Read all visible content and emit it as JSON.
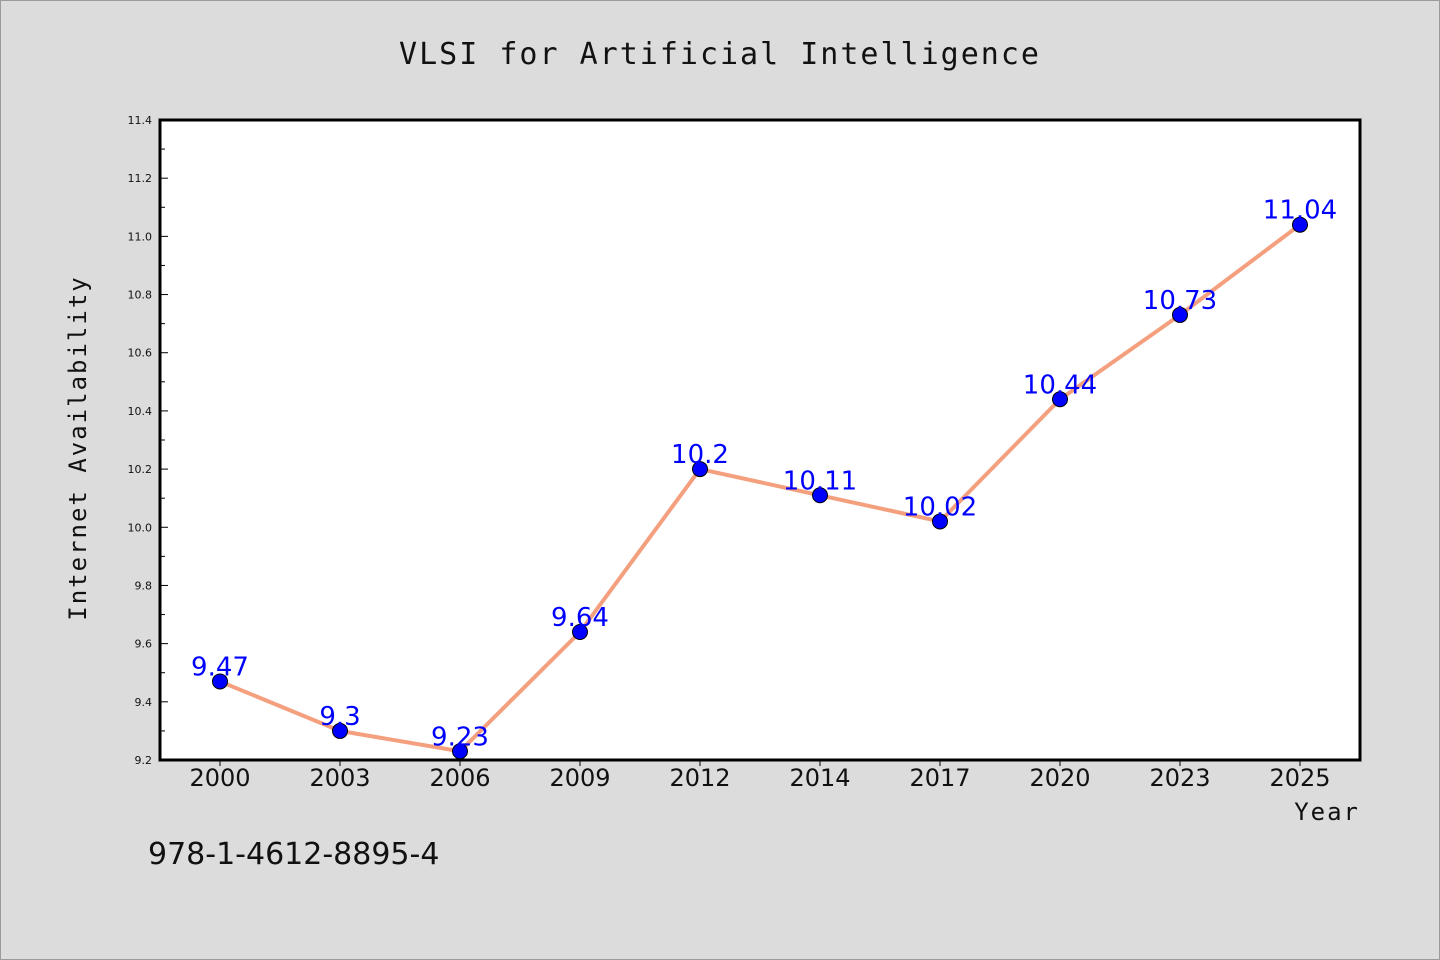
{
  "chart_data": {
    "type": "line",
    "title": "VLSI for Artificial Intelligence",
    "xlabel": "Year",
    "ylabel": "Internet Availability",
    "categories": [
      "2000",
      "2003",
      "2006",
      "2009",
      "2012",
      "2014",
      "2017",
      "2020",
      "2023",
      "2025"
    ],
    "series": [
      {
        "values": [
          9.47,
          9.3,
          9.23,
          9.64,
          10.2,
          10.11,
          10.02,
          10.44,
          10.73,
          11.04
        ],
        "data_labels": [
          "9.47",
          "9.3",
          "9.23",
          "9.64",
          "10.2",
          "10.11",
          "10.02",
          "10.44",
          "10.73",
          "11.04"
        ],
        "line_color": "#f4a07f",
        "marker_color": "#0000ff"
      }
    ],
    "ylim": [
      9.2,
      11.4
    ],
    "yticks": [
      "9.2",
      "9.4",
      "9.6",
      "9.8",
      "10.0",
      "10.2",
      "10.4",
      "10.6",
      "10.8",
      "11.0",
      "11.2",
      "11.4"
    ],
    "grid": false,
    "legend": "none"
  },
  "annotation": "978-1-4612-8895-4",
  "colors": {
    "background": "#dcdcdc",
    "plot_area": "#ffffff",
    "data_label": "#0000ff"
  }
}
